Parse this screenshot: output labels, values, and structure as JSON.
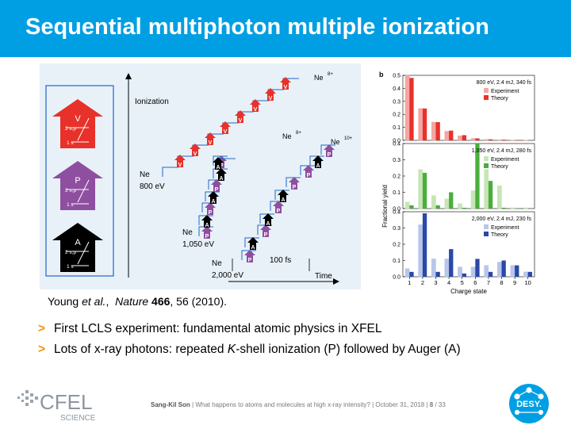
{
  "slide": {
    "title": "Sequential multiphoton multiple ionization",
    "caption": {
      "authors": "Young",
      "etal": "et al.",
      "journal": "Nature",
      "volume": "466",
      "rest": ", 56 (2010)."
    },
    "bullets": [
      {
        "marker": ">",
        "parts": [
          "First LCLS experiment: fundamental atomic physics in XFEL"
        ]
      },
      {
        "marker": ">",
        "parts": [
          "Lots of x-ray photons: repeated ",
          "K",
          "-shell ionization (P) followed by Auger (A)"
        ]
      }
    ],
    "footer": {
      "name": "Sang-Kil Son",
      "sep": " | ",
      "talk": "What happens to atoms and molecules at high x-ray intensity?",
      "date": "October 31, 2018",
      "page": "8",
      "total": "/ 33"
    }
  },
  "logos": {
    "cfel_top": "CFEL",
    "cfel_bottom": "SCIENCE",
    "desy": "DESY."
  },
  "figure_a": {
    "legend": [
      {
        "letter": "V",
        "shell_upper": "2 s,p",
        "shell_lower": "1 s",
        "color": "#e8312a"
      },
      {
        "letter": "P",
        "shell_upper": "2 s,p",
        "shell_lower": "1 s",
        "color": "#8e4fa0"
      },
      {
        "letter": "A",
        "shell_upper": "2 s,p",
        "shell_lower": "1 s",
        "color": "#000000"
      }
    ],
    "axis_y": "Ionization",
    "axis_x": "Time",
    "scale_bar": "100 fs",
    "ne": "Ne",
    "energies": [
      "800 eV",
      "1,050 eV",
      "2,000 eV"
    ],
    "states": [
      "Ne",
      "8+",
      "Ne",
      "8+",
      "Ne",
      "10+"
    ],
    "colors": {
      "V": "#e8312a",
      "P": "#8e4fa0",
      "A": "#000000",
      "step": "#1f66c7"
    }
  },
  "chart_data": {
    "type": "bar",
    "panel_label": "b",
    "ylabel": "Fractional yield",
    "xlabel": "Charge state",
    "categories": [
      "1",
      "2",
      "3",
      "4",
      "5",
      "6",
      "7",
      "8",
      "9",
      "10"
    ],
    "panels": [
      {
        "label": "800 eV, 2.4 mJ, 340 fs",
        "ylim": [
          0,
          0.5
        ],
        "yticks": [
          "0.0",
          "0.1",
          "0.2",
          "0.3",
          "0.4",
          "0.5"
        ],
        "series": [
          {
            "name": "Experiment",
            "color": "#f4a6a3",
            "values": [
              0.5,
              0.245,
              0.14,
              0.07,
              0.035,
              0.015,
              0.008,
              0.005,
              0.002,
              0.001
            ]
          },
          {
            "name": "Theory",
            "color": "#e8312a",
            "values": [
              0.48,
              0.245,
              0.14,
              0.075,
              0.04,
              0.015,
              0.008,
              0.005,
              0.003,
              0.001
            ]
          }
        ]
      },
      {
        "label": "1,050 eV, 2.4 mJ, 280 fs",
        "ylim": [
          0,
          0.4
        ],
        "yticks": [
          "0.0",
          "0.1",
          "0.2",
          "0.3",
          "0.4"
        ],
        "series": [
          {
            "name": "Experiment",
            "color": "#c6e6b5",
            "values": [
              0.04,
              0.24,
              0.08,
              0.06,
              0.03,
              0.11,
              0.24,
              0.14,
              0.005,
              0.005
            ]
          },
          {
            "name": "Theory",
            "color": "#4aae3c",
            "values": [
              0.02,
              0.22,
              0.02,
              0.1,
              0.005,
              0.4,
              0.17,
              0.005,
              0.002,
              0.0
            ]
          }
        ]
      },
      {
        "label": "2,000 eV, 2.4 mJ, 230 fs",
        "ylim": [
          0,
          0.4
        ],
        "yticks": [
          "0.0",
          "0.1",
          "0.2",
          "0.3",
          "0.4"
        ],
        "series": [
          {
            "name": "Experiment",
            "color": "#b8c6ea",
            "values": [
              0.05,
              0.32,
              0.11,
              0.11,
              0.06,
              0.06,
              0.07,
              0.09,
              0.07,
              0.03
            ]
          },
          {
            "name": "Theory",
            "color": "#2a48a8",
            "values": [
              0.03,
              0.39,
              0.03,
              0.17,
              0.02,
              0.11,
              0.03,
              0.1,
              0.07,
              0.03
            ]
          }
        ]
      }
    ]
  }
}
